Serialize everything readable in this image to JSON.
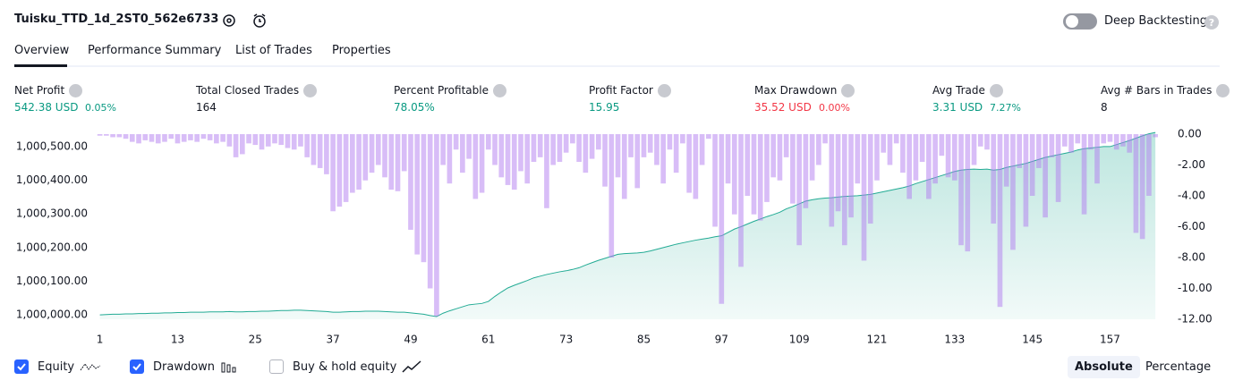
{
  "header": {
    "title": "Tuisku_TTD_1d_2ST0_562e6733",
    "toggle_label": "Deep Backtesting"
  },
  "tabs": [
    "Overview",
    "Performance Summary",
    "List of Trades",
    "Properties"
  ],
  "stats": [
    {
      "label": "Net Profit",
      "value": "542.38 USD",
      "pct": "0.05%",
      "color": "#089981"
    },
    {
      "label": "Total Closed Trades",
      "value": "164",
      "color": "#131722"
    },
    {
      "label": "Percent Profitable",
      "value": "78.05%",
      "color": "#089981"
    },
    {
      "label": "Profit Factor",
      "value": "15.95",
      "color": "#089981"
    },
    {
      "label": "Max Drawdown",
      "value": "35.52 USD",
      "pct": "0.00%",
      "color": "#f23645"
    },
    {
      "label": "Avg Trade",
      "value": "3.31 USD",
      "pct": "7.27%",
      "color": "#089981"
    },
    {
      "label": "Avg # Bars in Trades",
      "value": "8",
      "color": "#131722"
    }
  ],
  "chart_data": {
    "type": "equity-drawdown",
    "xlim": [
      0.5,
      165.5
    ],
    "xticks": [
      1,
      13,
      25,
      37,
      49,
      61,
      73,
      85,
      97,
      109,
      121,
      133,
      145,
      157
    ],
    "ylim": [
      999987,
      1000545
    ],
    "yticks": [
      {
        "value": 1000000,
        "label": "1,000,000.00"
      },
      {
        "value": 1000100,
        "label": "1,000,100.00"
      },
      {
        "value": 1000200,
        "label": "1,000,200.00"
      },
      {
        "value": 1000300,
        "label": "1,000,300.00"
      },
      {
        "value": 1000400,
        "label": "1,000,400.00"
      },
      {
        "value": 1000500,
        "label": "1,000,500.00"
      }
    ],
    "y2lim": [
      0,
      -12
    ],
    "y2ticks": [
      {
        "value": 0,
        "label": "0.00"
      },
      {
        "value": -2,
        "label": "-2.00"
      },
      {
        "value": -4,
        "label": "-4.00"
      },
      {
        "value": -6,
        "label": "-6.00"
      },
      {
        "value": -8,
        "label": "-8.00"
      },
      {
        "value": -10,
        "label": "-10.00"
      },
      {
        "value": -12,
        "label": "-12.00"
      }
    ],
    "series": [
      {
        "name": "Equity",
        "color": "#22ab94",
        "checked": true,
        "values": [
          1000000,
          1000001,
          1000002,
          1000002,
          1000003,
          1000003,
          1000004,
          1000004,
          1000005,
          1000005,
          1000006,
          1000006,
          1000007,
          1000007,
          1000008,
          1000008,
          1000008,
          1000009,
          1000009,
          1000009,
          1000010,
          1000009,
          1000009,
          1000010,
          1000010,
          1000011,
          1000011,
          1000012,
          1000013,
          1000013,
          1000014,
          1000014,
          1000013,
          1000012,
          1000011,
          1000010,
          1000008,
          1000008,
          1000009,
          1000010,
          1000010,
          1000011,
          1000011,
          1000011,
          1000010,
          1000009,
          1000008,
          1000008,
          1000006,
          1000004,
          1000002,
          999998,
          999995,
          1000005,
          1000012,
          1000018,
          1000024,
          1000030,
          1000032,
          1000034,
          1000040,
          1000055,
          1000068,
          1000080,
          1000088,
          1000095,
          1000102,
          1000110,
          1000115,
          1000120,
          1000124,
          1000128,
          1000131,
          1000135,
          1000140,
          1000148,
          1000155,
          1000162,
          1000168,
          1000174,
          1000180,
          1000182,
          1000183,
          1000184,
          1000186,
          1000190,
          1000195,
          1000200,
          1000205,
          1000210,
          1000214,
          1000218,
          1000222,
          1000225,
          1000228,
          1000232,
          1000235,
          1000245,
          1000255,
          1000262,
          1000270,
          1000278,
          1000285,
          1000292,
          1000298,
          1000305,
          1000315,
          1000322,
          1000330,
          1000338,
          1000342,
          1000345,
          1000347,
          1000348,
          1000350,
          1000352,
          1000353,
          1000354,
          1000356,
          1000358,
          1000362,
          1000366,
          1000370,
          1000374,
          1000378,
          1000383,
          1000390,
          1000396,
          1000402,
          1000408,
          1000414,
          1000420,
          1000426,
          1000430,
          1000432,
          1000433,
          1000432,
          1000433,
          1000430,
          1000432,
          1000438,
          1000442,
          1000446,
          1000450,
          1000456,
          1000462,
          1000468,
          1000472,
          1000476,
          1000480,
          1000484,
          1000490,
          1000494,
          1000496,
          1000498,
          1000500,
          1000500,
          1000506,
          1000512,
          1000518,
          1000525,
          1000532,
          1000538,
          1000542
        ]
      },
      {
        "name": "Drawdown",
        "color": "#b27cf0",
        "checked": true,
        "axis": "y2",
        "values": [
          -0.1,
          -0.1,
          -0.2,
          -0.2,
          -0.3,
          -0.5,
          -0.6,
          -0.4,
          -0.5,
          -0.6,
          -0.5,
          -0.3,
          -0.6,
          -0.5,
          -0.4,
          -0.5,
          -0.3,
          -0.4,
          -0.6,
          -0.5,
          -0.8,
          -1.5,
          -1.3,
          -0.6,
          -0.7,
          -1.0,
          -0.8,
          -0.6,
          -0.7,
          -0.9,
          -1.0,
          -0.8,
          -1.5,
          -2.0,
          -2.2,
          -2.6,
          -5.0,
          -4.7,
          -4.4,
          -3.8,
          -3.6,
          -3.0,
          -2.5,
          -2.0,
          -2.8,
          -3.6,
          -3.7,
          -2.4,
          -6.2,
          -7.8,
          -8.3,
          -10.0,
          -11.8,
          -2.0,
          -3.2,
          -1.0,
          -2.5,
          -1.6,
          -4.2,
          -3.8,
          -1.0,
          -2.0,
          -2.8,
          -3.3,
          -3.6,
          -2.4,
          -3.2,
          -1.8,
          -1.5,
          -4.8,
          -2.0,
          -1.8,
          -1.2,
          -0.6,
          -1.8,
          -2.5,
          -1.6,
          -1.0,
          -3.4,
          -8.0,
          -2.8,
          -4.2,
          -1.5,
          -3.5,
          -1.5,
          -1.2,
          -2.0,
          -3.2,
          -1.0,
          -2.5,
          -0.6,
          -3.8,
          -4.2,
          -2.0,
          -0.3,
          -6.0,
          -11.0,
          -3.2,
          -5.2,
          -8.6,
          -4.0,
          -5.2,
          -5.6,
          -4.4,
          -2.8,
          -3.0,
          -1.5,
          -4.5,
          -7.2,
          -4.8,
          -3.0,
          -2.0,
          -0.6,
          -6.0,
          -5.0,
          -7.2,
          -5.4,
          -3.2,
          -8.2,
          -5.8,
          -3.0,
          -1.2,
          -2.0,
          -0.6,
          -2.5,
          -4.2,
          -3.0,
          -1.8,
          -4.2,
          -3.2,
          -1.4,
          -2.8,
          -3.0,
          -7.2,
          -7.6,
          -2.0,
          -0.8,
          -1.0,
          -5.8,
          -11.2,
          -3.4,
          -7.5,
          -2.2,
          -6.0,
          -4.0,
          -2.2,
          -5.4,
          -1.5,
          -4.4,
          -0.8,
          -1.2,
          -0.6,
          -5.2,
          -1.0,
          -3.2,
          -0.6,
          -0.5,
          -1.0,
          -0.8,
          -1.2,
          -6.4,
          -6.8,
          -4.0,
          -0.2
        ]
      },
      {
        "name": "Buy & hold equity",
        "checked": false
      }
    ]
  },
  "view_modes": [
    "Absolute",
    "Percentage"
  ]
}
